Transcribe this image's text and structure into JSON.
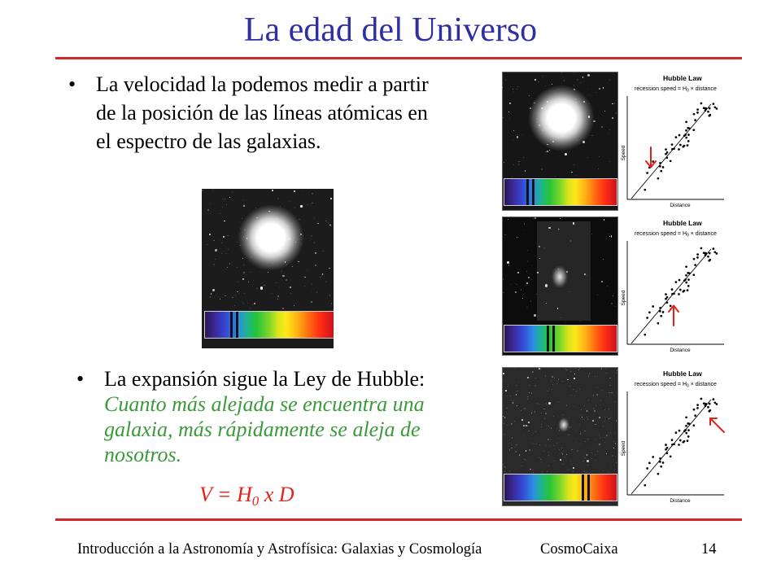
{
  "slide": {
    "title": "La edad del Universo",
    "bullet_symbol": "•",
    "bullets": [
      {
        "text": "La velocidad la podemos medir a partir de la posición de las líneas atómicas en el espectro de las galaxias."
      },
      {
        "lead": "La expansión sigue la Ley de Hubble:",
        "emphasis": "Cuanto más alejada se encuentra una galaxia, más rápidamente se aleja de nosotros."
      }
    ],
    "formula": {
      "lhs": "V = H",
      "sub": "0",
      "rhs": " x D"
    },
    "footer": {
      "course": "Introducción a la Astronomía y Astrofísica: Galaxias y Cosmología",
      "venue": "CosmoCaixa",
      "page_number": "14"
    }
  },
  "hubble_panels": [
    {
      "chart_title": "Hubble Law",
      "subtitle_before": "recession speed = H",
      "subtitle_sub": "0",
      "subtitle_after": " × distance",
      "ylabel": "Speed",
      "xlabel": "Distance",
      "arrow_icon": "arrow-down-icon"
    },
    {
      "chart_title": "Hubble Law",
      "subtitle_before": "recession speed = H",
      "subtitle_sub": "0",
      "subtitle_after": " × distance",
      "ylabel": "Speed",
      "xlabel": "Distance",
      "arrow_icon": "arrow-up-icon"
    },
    {
      "chart_title": "Hubble Law",
      "subtitle_before": "recession speed = H",
      "subtitle_sub": "0",
      "subtitle_after": " × distance",
      "ylabel": "Speed",
      "xlabel": "Distance",
      "arrow_icon": "arrow-up-left-icon"
    }
  ],
  "colors": {
    "title": "#2f2f9f",
    "rule": "#d42727",
    "emphasis": "#3a9a3a",
    "formula": "#e3221a",
    "arrow": "#e3221a"
  }
}
